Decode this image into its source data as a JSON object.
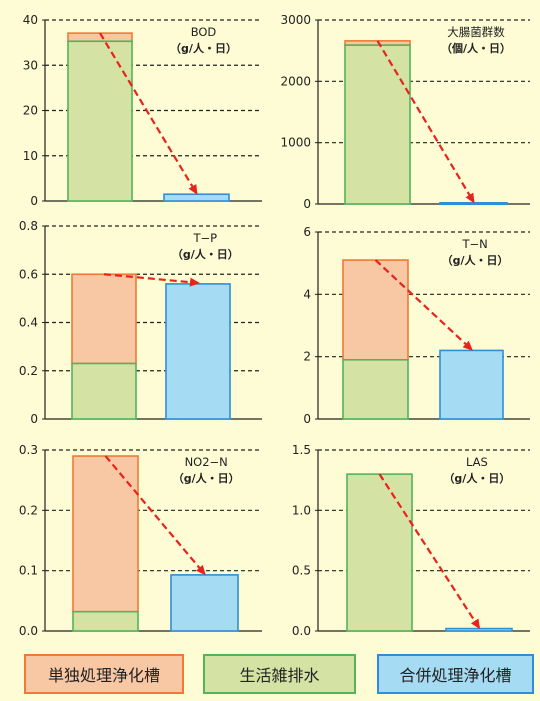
{
  "colors": {
    "background": "#fdfcd4",
    "single_fill": "#f8c8a4",
    "single_stroke": "#ef7a36",
    "domestic_fill": "#d4e2a4",
    "domestic_stroke": "#53b45b",
    "combined_fill": "#a6dcf3",
    "combined_stroke": "#2f8fd6",
    "arrow": "#e8231e"
  },
  "legend": {
    "single": "単独処理浄化槽",
    "domestic": "生活雑排水",
    "combined": "合併処理浄化槽"
  },
  "chart_data": [
    {
      "type": "bar",
      "stacked": true,
      "grid": "dashed",
      "title": "BOD",
      "unit": "（g/人・日）",
      "ylim": [
        0,
        40
      ],
      "yticks": [
        "0",
        "10",
        "20",
        "30",
        "40"
      ],
      "single_bar": {
        "domestic": 35.3,
        "total": 37.1
      },
      "combined_bar": {
        "total": 1.5
      }
    },
    {
      "type": "bar",
      "stacked": true,
      "grid": "dashed",
      "title": "大腸菌群数",
      "unit": "（個/人・日）",
      "ylim": [
        0,
        3000
      ],
      "yticks": [
        "0",
        "1000",
        "2000",
        "3000"
      ],
      "single_bar": {
        "domestic": 2590,
        "total": 2660
      },
      "combined_bar": {
        "total": 20
      }
    },
    {
      "type": "bar",
      "stacked": true,
      "grid": "dashed",
      "title": "T−P",
      "unit": "（g/人・日）",
      "ylim": [
        0,
        0.8
      ],
      "yticks": [
        "0",
        "0.2",
        "0.4",
        "0.6",
        "0.8"
      ],
      "single_bar": {
        "domestic": 0.23,
        "total": 0.6
      },
      "combined_bar": {
        "total": 0.56
      }
    },
    {
      "type": "bar",
      "stacked": true,
      "grid": "dashed",
      "title": "T−N",
      "unit": "（g/人・日）",
      "ylim": [
        0,
        6
      ],
      "yticks": [
        "0",
        "2",
        "4",
        "6"
      ],
      "single_bar": {
        "domestic": 1.9,
        "total": 5.1
      },
      "combined_bar": {
        "total": 2.2
      }
    },
    {
      "type": "bar",
      "stacked": true,
      "grid": "dashed",
      "title": "NO2−N",
      "unit": "（g/人・日）",
      "ylim": [
        0,
        0.3
      ],
      "yticks": [
        "0.0",
        "0.1",
        "0.2",
        "0.3"
      ],
      "single_bar": {
        "domestic": 0.032,
        "total": 0.29
      },
      "combined_bar": {
        "total": 0.093
      }
    },
    {
      "type": "bar",
      "stacked": true,
      "grid": "dashed",
      "title": "LAS",
      "unit": "（g/人・日）",
      "ylim": [
        0,
        1.5
      ],
      "yticks": [
        "0.0",
        "0.5",
        "1.0",
        "1.5"
      ],
      "single_bar": {
        "domestic": 1.3,
        "total": 1.3
      },
      "combined_bar": {
        "total": 0.02
      }
    }
  ]
}
